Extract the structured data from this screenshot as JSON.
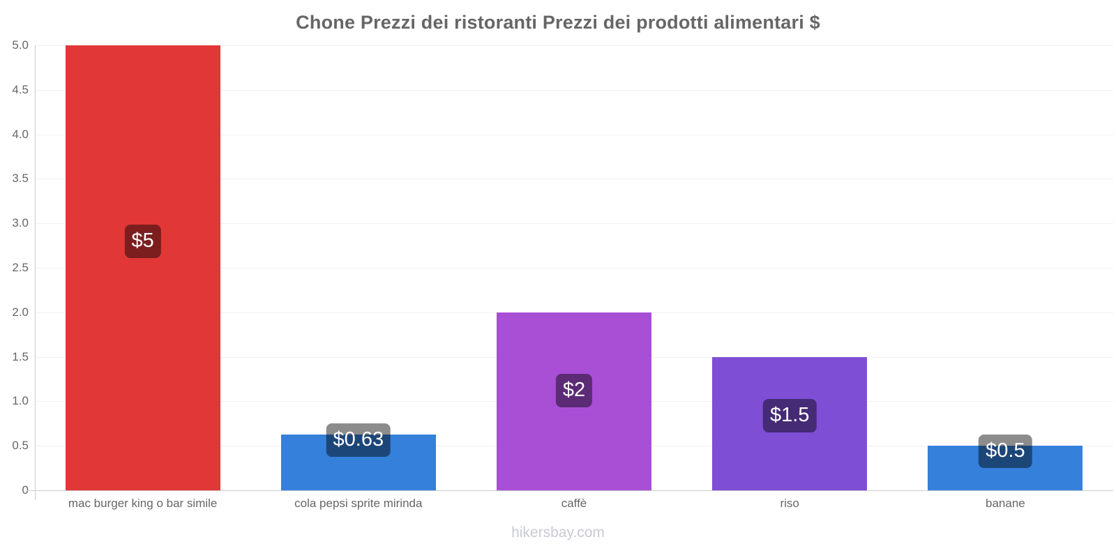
{
  "page": {
    "title": "Chone Prezzi dei ristoranti Prezzi dei prodotti alimentari $",
    "watermark": "hikersbay.com"
  },
  "chart_data": {
    "type": "bar",
    "title": "Chone Prezzi dei ristoranti Prezzi dei prodotti alimentari $",
    "categories": [
      "mac burger king o bar simile",
      "cola pepsi sprite mirinda",
      "caffè",
      "riso",
      "banane"
    ],
    "values": [
      5,
      0.63,
      2,
      1.5,
      0.5
    ],
    "value_labels": [
      "$5",
      "$0.63",
      "$2",
      "$1.5",
      "$0.5"
    ],
    "bar_colors": [
      "#e23737",
      "#3580db",
      "#a84fd6",
      "#7e4ed5",
      "#3580db"
    ],
    "currency": "$",
    "ylim": [
      0,
      5
    ],
    "ytick_values": [
      0,
      0.5,
      1,
      1.5,
      2,
      2.5,
      3,
      3.5,
      4,
      4.5,
      5
    ],
    "ytick_labels": [
      "0",
      "0.5",
      "1.0",
      "1.5",
      "2.0",
      "2.5",
      "3.0",
      "3.5",
      "4.0",
      "4.5",
      "5.0"
    ],
    "xlabel": "",
    "ylabel": "",
    "grid": true,
    "legend": false
  },
  "colors": {
    "title_text": "#666666",
    "tick_text": "#666666",
    "axis_line": "#cccccc",
    "grid_line": "#f0f0f0",
    "value_label_bg": "rgba(0,0,0,0.45)",
    "value_label_text": "#ffffff",
    "watermark_text": "#c9c9d3"
  }
}
